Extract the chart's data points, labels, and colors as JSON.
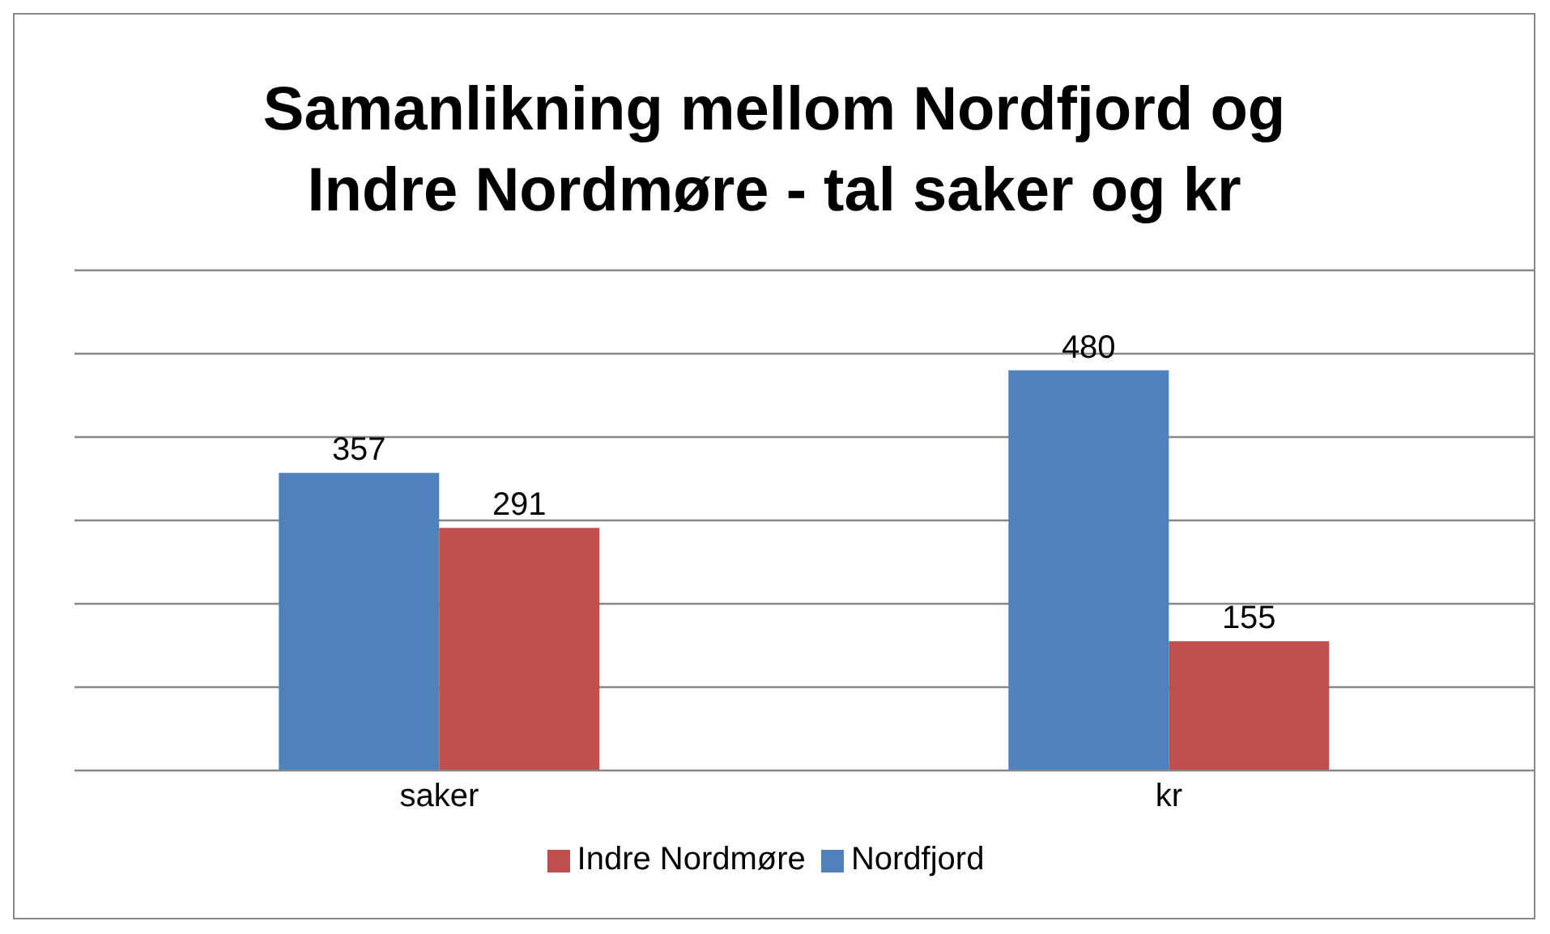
{
  "chart_data": {
    "type": "bar",
    "title": "Samanlikning mellom Nordfjord og Indre Nordmøre - tal saker og kr",
    "categories": [
      "saker",
      "kr"
    ],
    "series": [
      {
        "name": "Nordfjord",
        "color": "#4f81bd",
        "values": [
          357,
          480
        ]
      },
      {
        "name": "Indre Nordmøre",
        "color": "#c0504d",
        "values": [
          291,
          155
        ]
      }
    ],
    "ylim": [
      0,
      600
    ],
    "yticks": [
      {
        "value": 0,
        "label": null
      },
      {
        "value": 100,
        "label": null
      },
      {
        "value": 200,
        "label": null
      },
      {
        "value": 300,
        "label": null
      },
      {
        "value": 400,
        "label": null
      },
      {
        "value": 500,
        "label": null
      },
      {
        "value": 600,
        "label": null
      }
    ],
    "tick_labels": "x",
    "grid": "y",
    "legend": "bottom",
    "data_labels": true
  }
}
